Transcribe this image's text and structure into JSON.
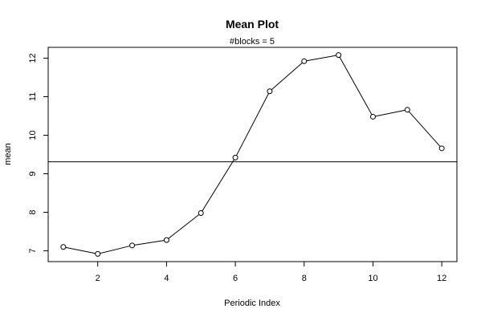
{
  "chart_data": {
    "type": "line",
    "title": "Mean Plot",
    "subtitle": "#blocks =  5",
    "xlabel": "Periodic Index",
    "ylabel": "mean",
    "x": [
      1,
      2,
      3,
      4,
      5,
      6,
      7,
      8,
      9,
      10,
      11,
      12
    ],
    "series": [
      {
        "values": [
          7.1,
          6.92,
          7.14,
          7.28,
          7.98,
          9.42,
          11.14,
          11.92,
          12.08,
          10.48,
          10.66,
          9.66
        ]
      }
    ],
    "reference_line": {
      "y": 9.31,
      "orientation": "horizontal"
    },
    "xlim": [
      0.56,
      12.44
    ],
    "ylim": [
      6.72,
      12.28
    ],
    "xticks": [
      2,
      4,
      6,
      8,
      10,
      12
    ],
    "yticks": [
      7,
      8,
      9,
      10,
      11,
      12
    ],
    "marker": "open-circle",
    "grid": false,
    "legend": "none",
    "line_color": "#000000"
  }
}
